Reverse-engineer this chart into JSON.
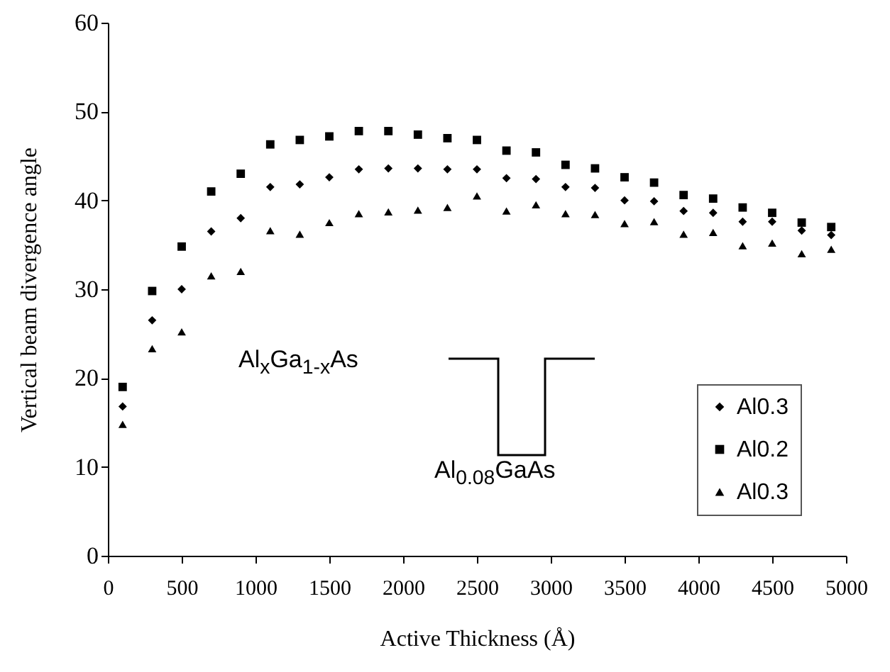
{
  "chart_data": {
    "type": "scatter",
    "xlabel": "Active Thickness (Å)",
    "ylabel": "Vertical beam divergence angle",
    "x": [
      100,
      300,
      500,
      700,
      900,
      1100,
      1300,
      1500,
      1700,
      1900,
      2100,
      2300,
      2500,
      2700,
      2900,
      3100,
      3300,
      3500,
      3700,
      3900,
      4100,
      4300,
      4500,
      4700,
      4900
    ],
    "series": [
      {
        "name": "Al0.3",
        "color": "#000000",
        "marker": "diamond",
        "values": [
          16.8,
          26.5,
          30,
          36.5,
          38,
          41.5,
          41.8,
          42.6,
          43.5,
          43.6,
          43.6,
          43.5,
          43.5,
          42.5,
          42.4,
          41.5,
          41.4,
          40,
          39.9,
          38.8,
          38.6,
          37.6,
          37.6,
          36.6,
          36.1
        ]
      },
      {
        "name": "Al0.2",
        "color": "#000000",
        "marker": "square",
        "values": [
          19,
          29.8,
          34.8,
          41,
          43,
          46.3,
          46.8,
          47.2,
          47.8,
          47.8,
          47.4,
          47,
          46.8,
          45.6,
          45.4,
          44,
          43.6,
          42.6,
          42,
          40.6,
          40.2,
          39.2,
          38.6,
          37.5,
          37
        ]
      },
      {
        "name": "Al0.3",
        "color": "#000000",
        "marker": "triangle",
        "values": [
          14.8,
          23.3,
          25.2,
          31.5,
          32,
          36.6,
          36.2,
          37.5,
          38.5,
          38.7,
          38.9,
          39.2,
          40.5,
          38.8,
          39.5,
          38.5,
          38.4,
          37.4,
          37.6,
          36.2,
          36.4,
          34.9,
          35.2,
          34,
          34.5
        ]
      }
    ],
    "xlim": [
      0,
      5000
    ],
    "xticks": [
      0,
      500,
      1000,
      1500,
      2000,
      2500,
      3000,
      3500,
      4000,
      4500,
      5000
    ],
    "ylim": [
      0,
      60
    ],
    "yticks": [
      0,
      10,
      20,
      30,
      40,
      50,
      60
    ],
    "grid": false,
    "legend": "bottom right",
    "annotations": [
      "Al$_{x}$Ga$_{1-x}$As",
      "Al$_{0.08}$GaAs"
    ]
  }
}
